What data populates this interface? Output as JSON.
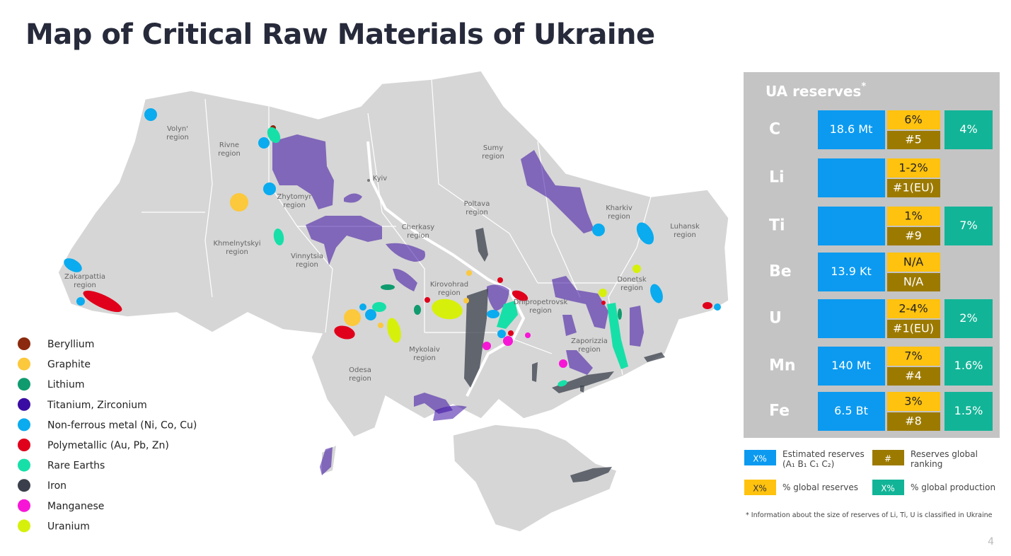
{
  "title": "Map of Critical Raw Materials of Ukraine",
  "regions": [
    {
      "name": "Volyn'",
      "suffix": "region"
    },
    {
      "name": "Rivne",
      "suffix": "region"
    },
    {
      "name": "Zhytomyr",
      "suffix": "region"
    },
    {
      "name": "Kyiv"
    },
    {
      "name": "Sumy",
      "suffix": "region"
    },
    {
      "name": "Poltava",
      "suffix": "region"
    },
    {
      "name": "Kharkiv",
      "suffix": "region"
    },
    {
      "name": "Luhansk",
      "suffix": "region"
    },
    {
      "name": "Khmelnytskyi",
      "suffix": "region"
    },
    {
      "name": "Vinnytsia",
      "suffix": "region"
    },
    {
      "name": "Cherkasy",
      "suffix": "region"
    },
    {
      "name": "Kirovohrad",
      "suffix": "region"
    },
    {
      "name": "Dnipropetrovsk",
      "suffix": "region"
    },
    {
      "name": "Donetsk",
      "suffix": "region"
    },
    {
      "name": "Zakarpattia",
      "suffix": "region"
    },
    {
      "name": "Mykolaiv",
      "suffix": "region"
    },
    {
      "name": "Zaporizzia",
      "suffix": "region"
    },
    {
      "name": "Odesa",
      "suffix": "region"
    }
  ],
  "legend": [
    {
      "name": "Beryllium",
      "color": "#8b2a0e"
    },
    {
      "name": "Graphite",
      "color": "#fcc83c"
    },
    {
      "name": "Lithium",
      "color": "#0f9b6e"
    },
    {
      "name": "Titanium, Zirconium",
      "color": "#3b0ca3"
    },
    {
      "name": "Non-ferrous metal (Ni, Co, Cu)",
      "color": "#0aabef"
    },
    {
      "name": "Polymetallic (Au, Pb, Zn)",
      "color": "#e0001b"
    },
    {
      "name": "Rare Earths",
      "color": "#16e0a8"
    },
    {
      "name": "Iron",
      "color": "#3a3f4b"
    },
    {
      "name": "Manganese",
      "color": "#f716d6"
    },
    {
      "name": "Uranium",
      "color": "#d6f00c"
    }
  ],
  "table": {
    "title": "UA reserves",
    "title_mark": "*",
    "rows": [
      {
        "element": "C",
        "reserves": "18.6 Mt",
        "share": "6%",
        "rank": "#5",
        "production": "4%"
      },
      {
        "element": "Li",
        "share": "1-2%",
        "rank": "#1(EU)"
      },
      {
        "element": "Ti",
        "share": "1%",
        "rank": "#9",
        "production": "7%"
      },
      {
        "element": "Be",
        "reserves": "13.9 Kt",
        "share": "N/A",
        "rank": "N/A"
      },
      {
        "element": "U",
        "share": "2-4%",
        "rank": "#1(EU)",
        "production": "2%"
      },
      {
        "element": "Mn",
        "reserves": "140 Mt",
        "share": "7%",
        "rank": "#4",
        "production": "1.6%"
      },
      {
        "element": "Fe",
        "reserves": "6.5 Bt",
        "share": "3%",
        "rank": "#8",
        "production": "1.5%"
      }
    ]
  },
  "key": [
    {
      "symbol": "X%",
      "text": "Estimated reserves (A₁ B₁ C₁ C₂)"
    },
    {
      "symbol": "#",
      "text": "Reserves global ranking"
    },
    {
      "symbol": "X%",
      "text": "% global reserves"
    },
    {
      "symbol": "X%",
      "text": "% global production"
    }
  ],
  "footnote": "* Information about the size of reserves of Li, Ti, U is classified in Ukraine",
  "page": "4"
}
